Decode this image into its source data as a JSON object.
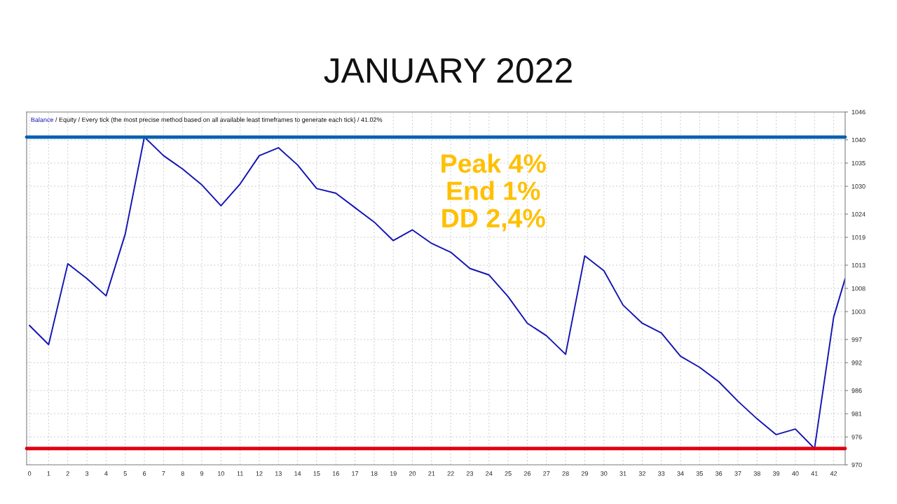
{
  "chart_data": {
    "type": "line",
    "title": "JANUARY 2022",
    "x": [
      0,
      1,
      2,
      3,
      4,
      5,
      6,
      7,
      8,
      9,
      10,
      11,
      12,
      13,
      14,
      15,
      16,
      17,
      18,
      19,
      20,
      21,
      22,
      23,
      24,
      25,
      26,
      27,
      28,
      29,
      30,
      31,
      32,
      33,
      34,
      35,
      36,
      37,
      38,
      39,
      40,
      41,
      42,
      42.6
    ],
    "series": [
      {
        "name": "Balance",
        "color": "#1414b4",
        "values": [
          1000.0,
          995.9,
          1013.3,
          1010.1,
          1006.4,
          1019.7,
          1040.6,
          1036.6,
          1033.7,
          1030.3,
          1025.8,
          1030.5,
          1036.6,
          1038.3,
          1034.6,
          1029.5,
          1028.5,
          1025.4,
          1022.3,
          1018.3,
          1020.6,
          1017.7,
          1015.8,
          1012.3,
          1010.9,
          1006.2,
          1000.5,
          997.8,
          993.8,
          1015.0,
          1011.8,
          1004.4,
          1000.5,
          998.4,
          993.4,
          991.0,
          987.9,
          983.7,
          979.9,
          976.5,
          977.7,
          973.5,
          1001.8,
          1010.1
        ]
      }
    ],
    "annotations": [
      "/ Equity / Every tick (the most precise method based on all available least timeframes to generate each tick) / 41.02%",
      "Peak 4%\nEnd 1%\nDD 2,4%"
    ],
    "ref_lines": [
      {
        "axis": "y",
        "value": 1040.6,
        "color": "#0060b0"
      },
      {
        "axis": "y",
        "value": 973.5,
        "color": "#e00010"
      }
    ],
    "xlim": [
      -0.15,
      42.6
    ],
    "ylim": [
      970,
      1046
    ],
    "xticks": [
      0,
      1,
      2,
      3,
      4,
      5,
      6,
      7,
      8,
      9,
      10,
      11,
      12,
      13,
      14,
      15,
      16,
      17,
      18,
      19,
      20,
      21,
      22,
      23,
      24,
      25,
      26,
      27,
      28,
      29,
      30,
      31,
      32,
      33,
      34,
      35,
      36,
      37,
      38,
      39,
      40,
      41,
      42
    ],
    "yticks": [
      970,
      976,
      981,
      986,
      992,
      997,
      1003,
      1008,
      1013,
      1019,
      1024,
      1030,
      1035,
      1040,
      1046
    ],
    "grid": true,
    "legend": "top left",
    "marker": "none",
    "line_style": "solid"
  }
}
